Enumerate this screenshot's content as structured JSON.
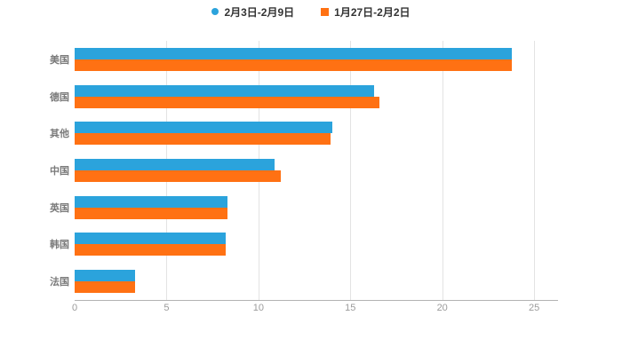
{
  "chart_data": {
    "type": "bar",
    "orientation": "horizontal",
    "title": "",
    "xlabel": "",
    "ylabel": "",
    "categories": [
      "美国",
      "德国",
      "其他",
      "中国",
      "英国",
      "韩国",
      "法国"
    ],
    "series": [
      {
        "name": "2月3日-2月9日",
        "color": "#2BA3DC",
        "marker": "circle",
        "values": [
          23.8,
          16.3,
          14.0,
          10.9,
          8.3,
          8.2,
          3.3
        ]
      },
      {
        "name": "1月27日-2月2日",
        "color": "#FF7113",
        "marker": "square",
        "values": [
          23.8,
          16.6,
          13.9,
          11.2,
          8.3,
          8.2,
          3.3
        ]
      }
    ],
    "xticks": [
      0,
      5,
      10,
      15,
      20,
      25
    ],
    "xlim": [
      0,
      26.3
    ],
    "grid": true,
    "legend_position": "top",
    "colors": {
      "grid": "#e3e3e3",
      "axis": "#b3b3b3",
      "tick_label": "#9b9b9b",
      "category_label": "#7a7a7a",
      "background": "#ffffff"
    }
  }
}
